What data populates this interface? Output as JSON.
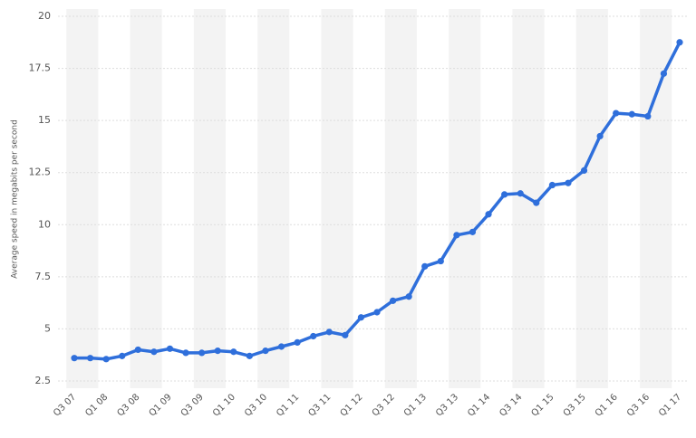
{
  "chart_data": {
    "type": "line",
    "y_label": "Average speed in megabits per second",
    "categories": [
      "Q3 07",
      null,
      "Q1 08",
      null,
      "Q3 08",
      null,
      "Q1 09",
      null,
      "Q3 09",
      null,
      "Q1 10",
      null,
      "Q3 10",
      null,
      "Q1 11",
      null,
      "Q3 11",
      null,
      "Q1 12",
      null,
      "Q3 12",
      null,
      "Q1 13",
      null,
      "Q3 13",
      null,
      "Q1 14",
      null,
      "Q3 14",
      null,
      "Q1 15",
      null,
      "Q3 15",
      null,
      "Q1 16",
      null,
      "Q3 16",
      null,
      "Q1 17"
    ],
    "values": [
      3.6,
      3.6,
      3.55,
      3.7,
      4.0,
      3.9,
      4.05,
      3.85,
      3.85,
      3.95,
      3.9,
      3.7,
      3.95,
      4.15,
      4.35,
      4.65,
      4.85,
      4.7,
      5.55,
      5.8,
      6.35,
      6.55,
      8.0,
      8.25,
      9.5,
      9.65,
      10.5,
      11.45,
      11.5,
      11.05,
      11.9,
      12.0,
      12.6,
      14.25,
      15.35,
      15.3,
      15.2,
      17.25,
      18.75
    ],
    "color": "#2f6fdb",
    "ylim": [
      2.5,
      20
    ],
    "yticks": [
      2.5,
      5,
      7.5,
      10,
      12.5,
      15,
      17.5,
      20
    ],
    "grid": true
  }
}
